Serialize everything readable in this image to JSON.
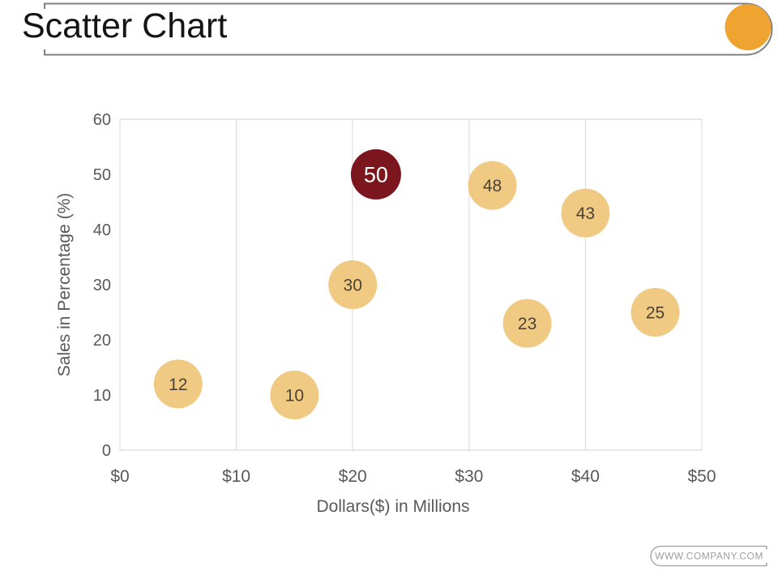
{
  "header": {
    "title": "Scatter Chart",
    "accent_color": "#EFA431",
    "frame_color": "#7F7F7F"
  },
  "chart_data": {
    "type": "scatter",
    "title": "",
    "xlabel": "Dollars($) in Millions",
    "ylabel": "Sales in Percentage (%)",
    "xlim": [
      0,
      50
    ],
    "ylim": [
      0,
      60
    ],
    "grid": "vertical-only",
    "legend": "none",
    "x_ticks": [
      {
        "value": 0,
        "label": "$0"
      },
      {
        "value": 10,
        "label": "$10"
      },
      {
        "value": 20,
        "label": "$20"
      },
      {
        "value": 30,
        "label": "$30"
      },
      {
        "value": 40,
        "label": "$40"
      },
      {
        "value": 50,
        "label": "$50"
      }
    ],
    "y_ticks": [
      {
        "value": 0,
        "label": "0"
      },
      {
        "value": 10,
        "label": "10"
      },
      {
        "value": 20,
        "label": "20"
      },
      {
        "value": 30,
        "label": "30"
      },
      {
        "value": 40,
        "label": "40"
      },
      {
        "value": 50,
        "label": "50"
      },
      {
        "value": 60,
        "label": "60"
      }
    ],
    "points": [
      {
        "x": 5,
        "y": 12,
        "label": "12",
        "highlight": false
      },
      {
        "x": 15,
        "y": 10,
        "label": "10",
        "highlight": false
      },
      {
        "x": 20,
        "y": 30,
        "label": "30",
        "highlight": false
      },
      {
        "x": 22,
        "y": 50,
        "label": "50",
        "highlight": true
      },
      {
        "x": 32,
        "y": 48,
        "label": "48",
        "highlight": false
      },
      {
        "x": 35,
        "y": 23,
        "label": "23",
        "highlight": false
      },
      {
        "x": 40,
        "y": 43,
        "label": "43",
        "highlight": false
      },
      {
        "x": 46,
        "y": 25,
        "label": "25",
        "highlight": false
      }
    ],
    "style": {
      "grid_color": "#D9D9D9",
      "plot_border_color": "#CFCFCF",
      "tick_color": "#595959",
      "axis_title_color": "#595959",
      "default_point_color": "#F0C983",
      "default_label_color": "#4A4336",
      "highlight_point_color": "#7B161E",
      "highlight_label_color": "#FFFFFF"
    }
  },
  "footer": {
    "website": "WWW.COMPANY.COM",
    "frame_color": "#ABABAB",
    "text_color": "#9E9E9E"
  }
}
